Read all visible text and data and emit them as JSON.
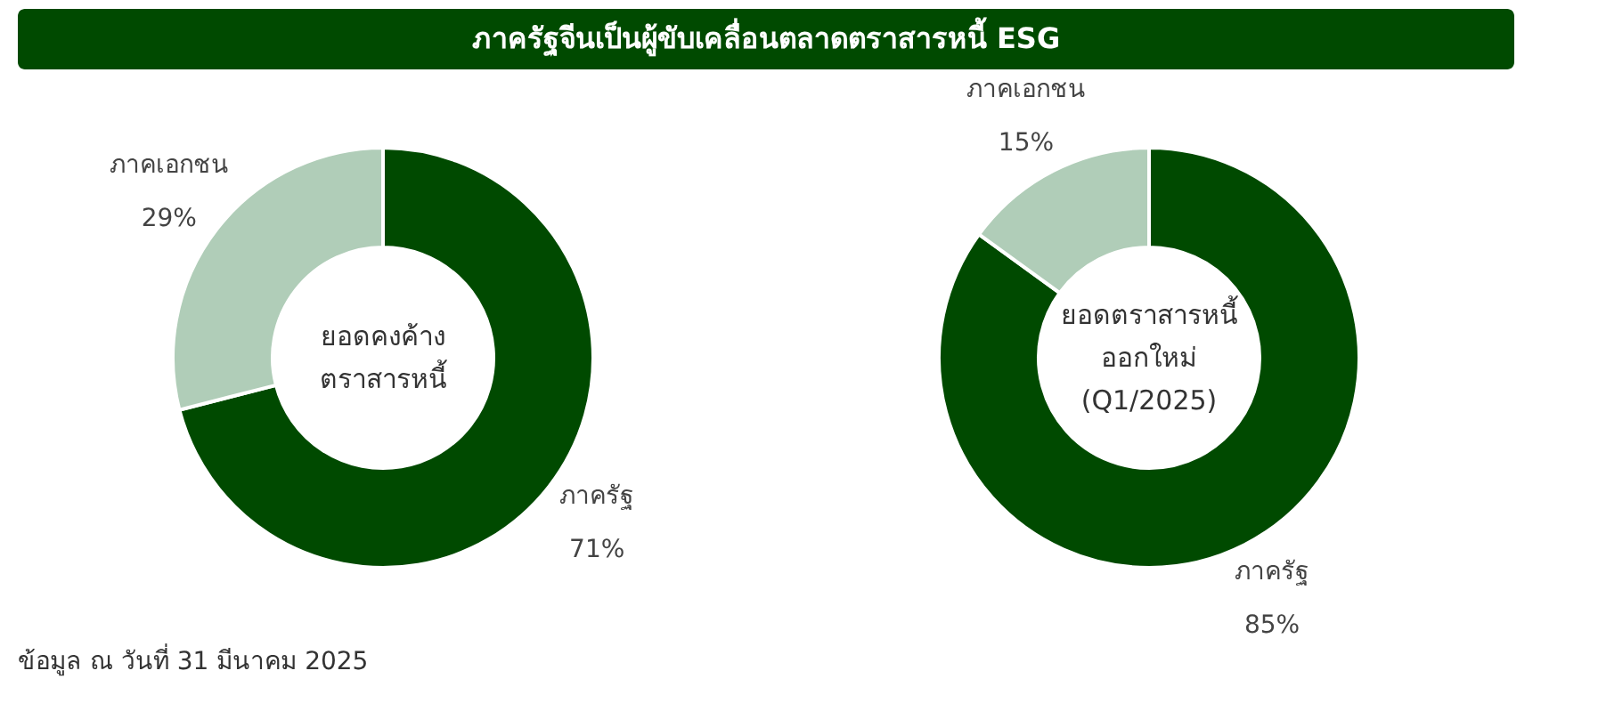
{
  "chart_data": [
    {
      "type": "donut",
      "title": "ภาครัฐจีนเป็นผู้ขับเคลื่อนตลาดตราสารหนี้ ESG",
      "subtitle": "ยอดคงค้าง\nตราสารหนี้",
      "categories": [
        "ภาครัฐ",
        "ภาคเอกชน"
      ],
      "values": [
        71,
        29
      ],
      "colors": [
        "#004a00",
        "#b0cdb8"
      ],
      "value_labels": [
        "71%",
        "29%"
      ],
      "legend": false
    },
    {
      "type": "donut",
      "subtitle": "ยอดตราสารหนี้\nออกใหม่\n(Q1/2025)",
      "categories": [
        "ภาครัฐ",
        "ภาคเอกชน"
      ],
      "values": [
        85,
        15
      ],
      "colors": [
        "#004a00",
        "#b0cdb8"
      ],
      "value_labels": [
        "85%",
        "15%"
      ],
      "legend": false,
      "annotations": [
        "ข้อมูล ณ วันที่ 31 มีนาคม 2025"
      ]
    }
  ]
}
